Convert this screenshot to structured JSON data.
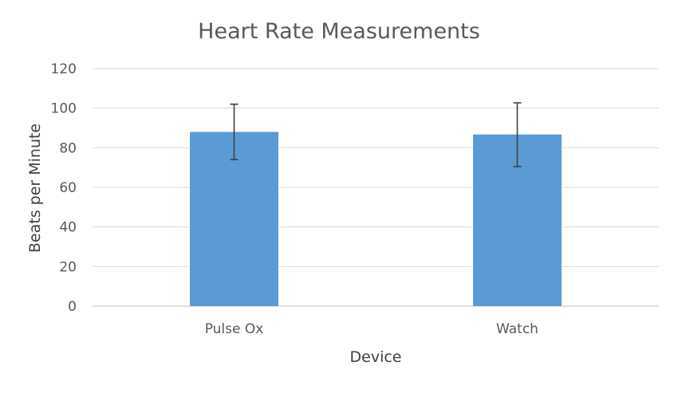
{
  "chart_data": {
    "type": "bar",
    "title": "Heart Rate Measurements",
    "xlabel": "Device",
    "ylabel": "Beats per Minute",
    "categories": [
      "Pulse Ox",
      "Watch"
    ],
    "values": [
      88,
      86.7
    ],
    "error_bars": [
      {
        "low": 74,
        "high": 102
      },
      {
        "low": 70.5,
        "high": 102.7
      }
    ],
    "ylim": [
      0,
      120
    ],
    "yticks": [
      "0",
      "20",
      "40",
      "60",
      "80",
      "100",
      "120"
    ],
    "grid": true,
    "legend": "none",
    "colors": {
      "bar": "#5b9bd5",
      "grid": "#d9d9d9",
      "axis": "#bfbfbf",
      "text": "#595959",
      "error_bar": "#404040"
    }
  }
}
